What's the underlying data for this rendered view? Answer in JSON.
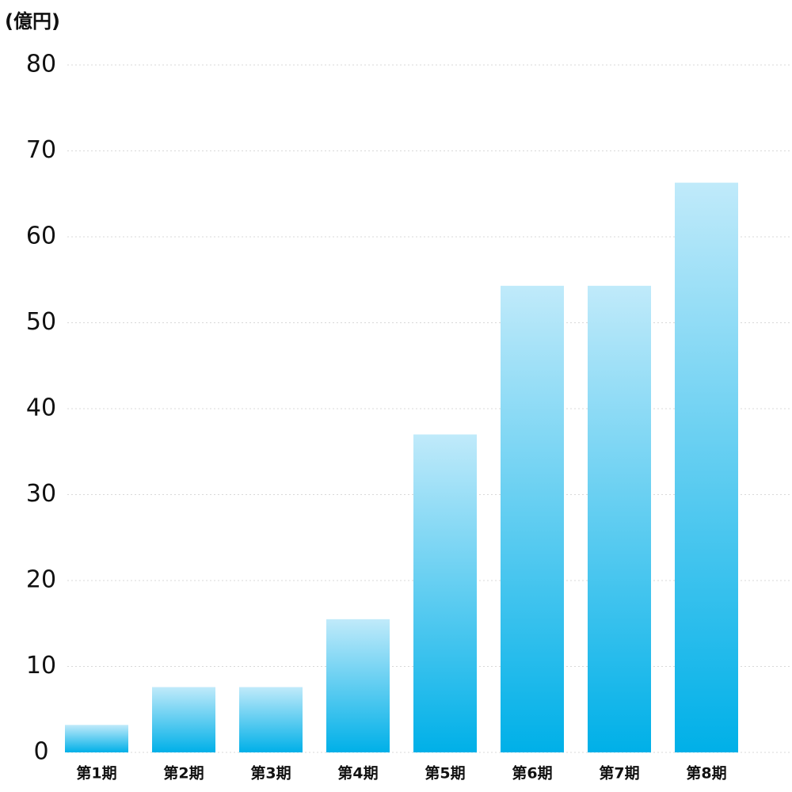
{
  "chart_data": {
    "type": "bar",
    "y_unit_label": "(億円)",
    "categories": [
      "第1期",
      "第2期",
      "第3期",
      "第4期",
      "第5期",
      "第6期",
      "第7期",
      "第8期"
    ],
    "values": [
      3.2,
      7.6,
      7.6,
      15.5,
      37.0,
      54.3,
      54.3,
      66.3
    ],
    "color": "#00b0e8",
    "color_top": "#c0eafa",
    "ylim": [
      0,
      80
    ],
    "yticks": [
      0,
      10,
      20,
      30,
      40,
      50,
      60,
      70,
      80
    ],
    "grid": true
  }
}
